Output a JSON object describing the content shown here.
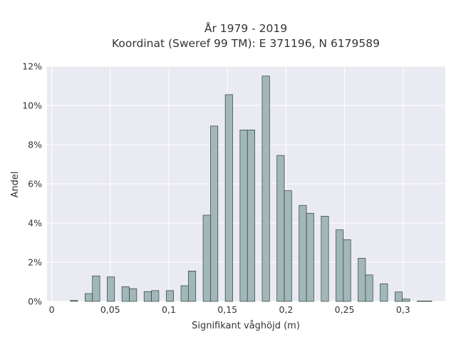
{
  "chart_data": {
    "type": "bar",
    "title_line1": "År 1979 - 2019",
    "title_line2": "Koordinat (Sweref 99 TM): E 371196, N 6179589",
    "xlabel": "Signifikant våghöjd (m)",
    "ylabel": "Andel",
    "xlim": [
      -0.004,
      0.336
    ],
    "ylim": [
      0,
      12
    ],
    "x_ticks": [
      0,
      0.05,
      0.1,
      0.15,
      0.2,
      0.25,
      0.3
    ],
    "x_tick_labels": [
      "0",
      "0,05",
      "0,1",
      "0,15",
      "0,2",
      "0,25",
      "0,3"
    ],
    "y_ticks": [
      0,
      2,
      4,
      6,
      8,
      10,
      12
    ],
    "y_tick_labels": [
      "0%",
      "2%",
      "4%",
      "6%",
      "8%",
      "10%",
      "12%"
    ],
    "bin_width": 0.0063,
    "bar_color": "#a1b7b8",
    "bar_edge_color": "#2f3e3e",
    "plot_background": "#eaeaf2",
    "grid": true,
    "values": [
      {
        "x": 0.019,
        "y": 0.05
      },
      {
        "x": 0.0316,
        "y": 0.4
      },
      {
        "x": 0.0379,
        "y": 1.3
      },
      {
        "x": 0.0505,
        "y": 1.25
      },
      {
        "x": 0.0631,
        "y": 0.75
      },
      {
        "x": 0.0694,
        "y": 0.65
      },
      {
        "x": 0.082,
        "y": 0.5
      },
      {
        "x": 0.0883,
        "y": 0.55
      },
      {
        "x": 0.1009,
        "y": 0.55
      },
      {
        "x": 0.1135,
        "y": 0.8
      },
      {
        "x": 0.1198,
        "y": 1.55
      },
      {
        "x": 0.1324,
        "y": 4.4
      },
      {
        "x": 0.1387,
        "y": 8.95
      },
      {
        "x": 0.1513,
        "y": 10.55
      },
      {
        "x": 0.1639,
        "y": 8.75
      },
      {
        "x": 0.1702,
        "y": 8.75
      },
      {
        "x": 0.1828,
        "y": 11.5
      },
      {
        "x": 0.1954,
        "y": 7.45
      },
      {
        "x": 0.2017,
        "y": 5.65
      },
      {
        "x": 0.2143,
        "y": 4.9
      },
      {
        "x": 0.2206,
        "y": 4.5
      },
      {
        "x": 0.2332,
        "y": 4.35
      },
      {
        "x": 0.2458,
        "y": 3.65
      },
      {
        "x": 0.2521,
        "y": 3.15
      },
      {
        "x": 0.2647,
        "y": 2.2
      },
      {
        "x": 0.271,
        "y": 1.35
      },
      {
        "x": 0.2836,
        "y": 0.9
      },
      {
        "x": 0.2962,
        "y": 0.48
      },
      {
        "x": 0.3025,
        "y": 0.12
      },
      {
        "x": 0.3151,
        "y": 0.02
      },
      {
        "x": 0.3214,
        "y": 0.02
      }
    ]
  }
}
